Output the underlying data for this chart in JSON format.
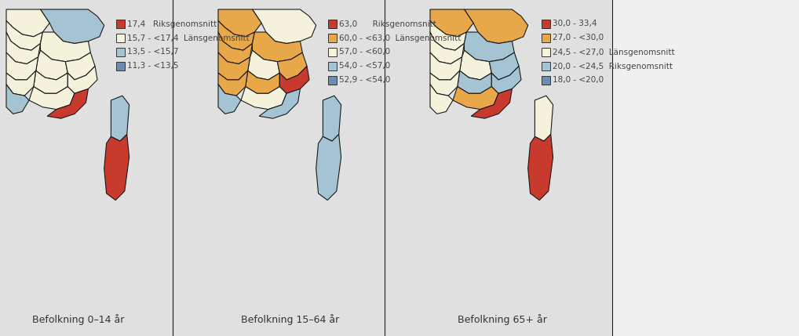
{
  "background_color": "#f0f0f0",
  "title1": "Befolkning 0–14 år",
  "title2": "Befolkning 15–64 år",
  "title3": "Befolkning 65+ år",
  "legend1": [
    {
      "color": "#c83a2e",
      "label": "17,4   Riksgenomsnitt"
    },
    {
      "color": "#f5f2dc",
      "label": "15,7 - <17,4  Länsgenomsnitt"
    },
    {
      "color": "#a4c4d4",
      "label": "13,5 - <15,7"
    },
    {
      "color": "#6b8ab4",
      "label": "11,3 - <13,5"
    }
  ],
  "legend2": [
    {
      "color": "#c83a2e",
      "label": "63,0      Riksgenomsnitt"
    },
    {
      "color": "#e8a84a",
      "label": "60,0 - <63,0  Länsgenomsnitt"
    },
    {
      "color": "#f5f2dc",
      "label": "57,0 - <60,0"
    },
    {
      "color": "#a4c4d4",
      "label": "54,0 - <57,0"
    },
    {
      "color": "#6b8ab4",
      "label": "52,9 - <54,0"
    }
  ],
  "legend3": [
    {
      "color": "#c83a2e",
      "label": "30,0 - 33,4"
    },
    {
      "color": "#e8a84a",
      "label": "27,0 - <30,0"
    },
    {
      "color": "#f5f2dc",
      "label": "24,5 - <27,0  Länsgenomsnitt"
    },
    {
      "color": "#a4c4d4",
      "label": "20,0 - <24,5  Riksgenomsnitt"
    },
    {
      "color": "#6b8ab4",
      "label": "18,0 - <20,0"
    }
  ],
  "font_size_title": 9,
  "font_size_legend": 7.5,
  "map1_colors": [
    "#a4c4d4",
    "#f5f2dc",
    "#f5f2dc",
    "#f5f2dc",
    "#f5f2dc",
    "#f5f2dc",
    "#f5f2dc",
    "#f5f2dc",
    "#f5f2dc",
    "#f5f2dc",
    "#f5f2dc",
    "#a4c4d4",
    "#a4c4d4",
    "#c83a2e"
  ],
  "map2_colors": [
    "#f5f2dc",
    "#e8a84a",
    "#e8a84a",
    "#e8a84a",
    "#e8a84a",
    "#e8a84a",
    "#e8a84a",
    "#f5f2dc",
    "#e8a84a",
    "#f5f2dc",
    "#f5f2dc",
    "#a4c4d4",
    "#a4c4d4",
    "#c83a2e"
  ],
  "map3_colors": [
    "#e8a84a",
    "#e8a84a",
    "#f5f2dc",
    "#f5f2dc",
    "#a4c4d4",
    "#a4c4d4",
    "#f5f2dc",
    "#e8a84a",
    "#a4c4d4",
    "#f5f2dc",
    "#e8a84a",
    "#c83a2e",
    "#e8a84a",
    "#f5f2dc"
  ]
}
